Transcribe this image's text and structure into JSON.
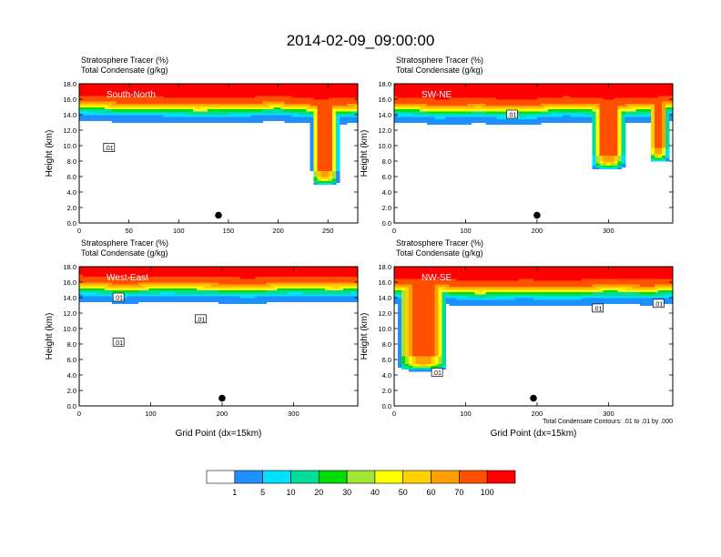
{
  "page": {
    "title": "2014-02-09_09:00:00"
  },
  "panel_header": {
    "line1": "Stratosphere Tracer   (%)",
    "line2": "Total Condensate   (g/kg)"
  },
  "y_axis_label": "Height (km)",
  "x_axis_label": "Grid Point (dx=15km)",
  "contour_note": "Total Condensate Contours: .01 to .01 by .000",
  "colors": {
    "bins": [
      "#ffffff",
      "#1e8fff",
      "#00e0ff",
      "#00dd9a",
      "#00dd00",
      "#a0e632",
      "#ffff00",
      "#ffd000",
      "#ffa000",
      "#ff5000",
      "#ff0000"
    ],
    "background": "#ffffff",
    "contour": "#000000"
  },
  "colorbar": {
    "labels": [
      "1",
      "5",
      "10",
      "20",
      "30",
      "40",
      "50",
      "60",
      "70",
      "100"
    ]
  },
  "chart_data": [
    {
      "type": "heatmap",
      "title": "South-North",
      "xlabel": "",
      "ylabel": "Height (km)",
      "xlim": [
        0,
        280
      ],
      "ylim": [
        0,
        18
      ],
      "x_ticks": [
        "0",
        "50",
        "100",
        "150",
        "200",
        "250"
      ],
      "x_tick_values": [
        0,
        50,
        100,
        150,
        200,
        250
      ],
      "y_ticks": [
        "0.0",
        "2.0",
        "4.0",
        "6.0",
        "8.0",
        "10.0",
        "12.0",
        "14.0",
        "16.0",
        "18.0"
      ],
      "tropopause_km": {
        "x": [
          0,
          40,
          80,
          120,
          160,
          200,
          240,
          280
        ],
        "height": [
          15.0,
          14.8,
          14.8,
          14.6,
          14.7,
          14.9,
          14.5,
          14.6
        ]
      },
      "intrusions": [
        {
          "x_center": 247,
          "half_width": 12,
          "bottom_km": 6.0
        }
      ],
      "contour_labels": [
        {
          "text": ".01",
          "x": 30,
          "y": 9.7
        }
      ],
      "surface_marker": {
        "x": 140,
        "y": 1.0
      }
    },
    {
      "type": "heatmap",
      "title": "SW-NE",
      "xlabel": "",
      "ylabel": "Height (km)",
      "xlim": [
        0,
        390
      ],
      "ylim": [
        0,
        18
      ],
      "x_ticks": [
        "0",
        "100",
        "200",
        "300"
      ],
      "x_tick_values": [
        0,
        100,
        200,
        300
      ],
      "y_ticks": [
        "0.0",
        "2.0",
        "4.0",
        "6.0",
        "8.0",
        "10.0",
        "12.0",
        "14.0",
        "16.0",
        "18.0"
      ],
      "tropopause_km": {
        "x": [
          0,
          60,
          120,
          180,
          240,
          300,
          360,
          390
        ],
        "height": [
          14.8,
          14.5,
          14.6,
          14.4,
          14.8,
          14.5,
          14.7,
          15.0
        ]
      },
      "intrusions": [
        {
          "x_center": 300,
          "half_width": 20,
          "bottom_km": 8.0
        },
        {
          "x_center": 370,
          "half_width": 12,
          "bottom_km": 9.0
        }
      ],
      "contour_labels": [
        {
          "text": ".01",
          "x": 165,
          "y": 14.0
        }
      ],
      "surface_marker": {
        "x": 200,
        "y": 1.0
      }
    },
    {
      "type": "heatmap",
      "title": "West-East",
      "xlabel": "Grid Point (dx=15km)",
      "ylabel": "Height (km)",
      "xlim": [
        0,
        390
      ],
      "ylim": [
        0,
        18
      ],
      "x_ticks": [
        "0",
        "100",
        "200",
        "300"
      ],
      "x_tick_values": [
        0,
        100,
        200,
        300
      ],
      "y_ticks": [
        "0.0",
        "2.0",
        "4.0",
        "6.0",
        "8.0",
        "10.0",
        "12.0",
        "14.0",
        "16.0",
        "18.0"
      ],
      "tropopause_km": {
        "x": [
          0,
          60,
          120,
          180,
          240,
          300,
          360,
          390
        ],
        "height": [
          15.3,
          15.0,
          15.2,
          15.1,
          15.0,
          15.2,
          15.1,
          15.2
        ]
      },
      "intrusions": [],
      "contour_labels": [
        {
          "text": ".01",
          "x": 55,
          "y": 14.0
        },
        {
          "text": ".01",
          "x": 170,
          "y": 11.2
        },
        {
          "text": ".01",
          "x": 55,
          "y": 8.2
        }
      ],
      "surface_marker": {
        "x": 200,
        "y": 1.0
      }
    },
    {
      "type": "heatmap",
      "title": "NW-SE",
      "xlabel": "Grid Point (dx=15km)",
      "ylabel": "Height (km)",
      "xlim": [
        0,
        390
      ],
      "ylim": [
        0,
        18
      ],
      "x_ticks": [
        "0",
        "100",
        "200",
        "300"
      ],
      "x_tick_values": [
        0,
        100,
        200,
        300
      ],
      "y_ticks": [
        "0.0",
        "2.0",
        "4.0",
        "6.0",
        "8.0",
        "10.0",
        "12.0",
        "14.0",
        "16.0",
        "18.0"
      ],
      "tropopause_km": {
        "x": [
          0,
          60,
          120,
          180,
          240,
          300,
          360,
          390
        ],
        "height": [
          15.0,
          14.9,
          14.6,
          14.8,
          14.7,
          14.9,
          14.8,
          15.0
        ]
      },
      "intrusions": [
        {
          "x_center": 40,
          "half_width": 30,
          "bottom_km": 5.6
        }
      ],
      "contour_labels": [
        {
          "text": ".01",
          "x": 285,
          "y": 12.6
        },
        {
          "text": ".01",
          "x": 370,
          "y": 13.2
        },
        {
          "text": ".01",
          "x": 60,
          "y": 4.3
        }
      ],
      "surface_marker": {
        "x": 195,
        "y": 1.0
      }
    }
  ]
}
